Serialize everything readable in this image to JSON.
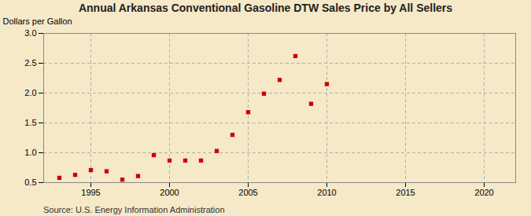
{
  "chart_data": {
    "type": "scatter",
    "title": "Annual Arkansas Conventional Gasoline DTW Sales Price by All Sellers",
    "ylabel": "Dollars per Gallon",
    "source": "Source: U.S. Energy Information Administration",
    "x": [
      1993,
      1994,
      1995,
      1996,
      1997,
      1998,
      1999,
      2000,
      2001,
      2002,
      2003,
      2004,
      2005,
      2006,
      2007,
      2008,
      2009,
      2010
    ],
    "values": [
      0.58,
      0.63,
      0.71,
      0.69,
      0.55,
      0.61,
      0.96,
      0.87,
      0.87,
      0.87,
      1.03,
      1.3,
      1.68,
      1.99,
      2.22,
      2.62,
      1.82,
      2.15
    ],
    "color": "#cc0000",
    "marker": "square",
    "xlim": [
      1992,
      2022
    ],
    "ylim": [
      0.5,
      3.0
    ],
    "xticks": [
      1995,
      2000,
      2005,
      2010,
      2015,
      2020
    ],
    "yticks": [
      0.5,
      {
        "value": 1,
        "label": "1.0"
      },
      1.5,
      {
        "value": 2,
        "label": "2.0"
      },
      2.5,
      {
        "value": 3,
        "label": "3.0"
      }
    ],
    "grid": true
  }
}
